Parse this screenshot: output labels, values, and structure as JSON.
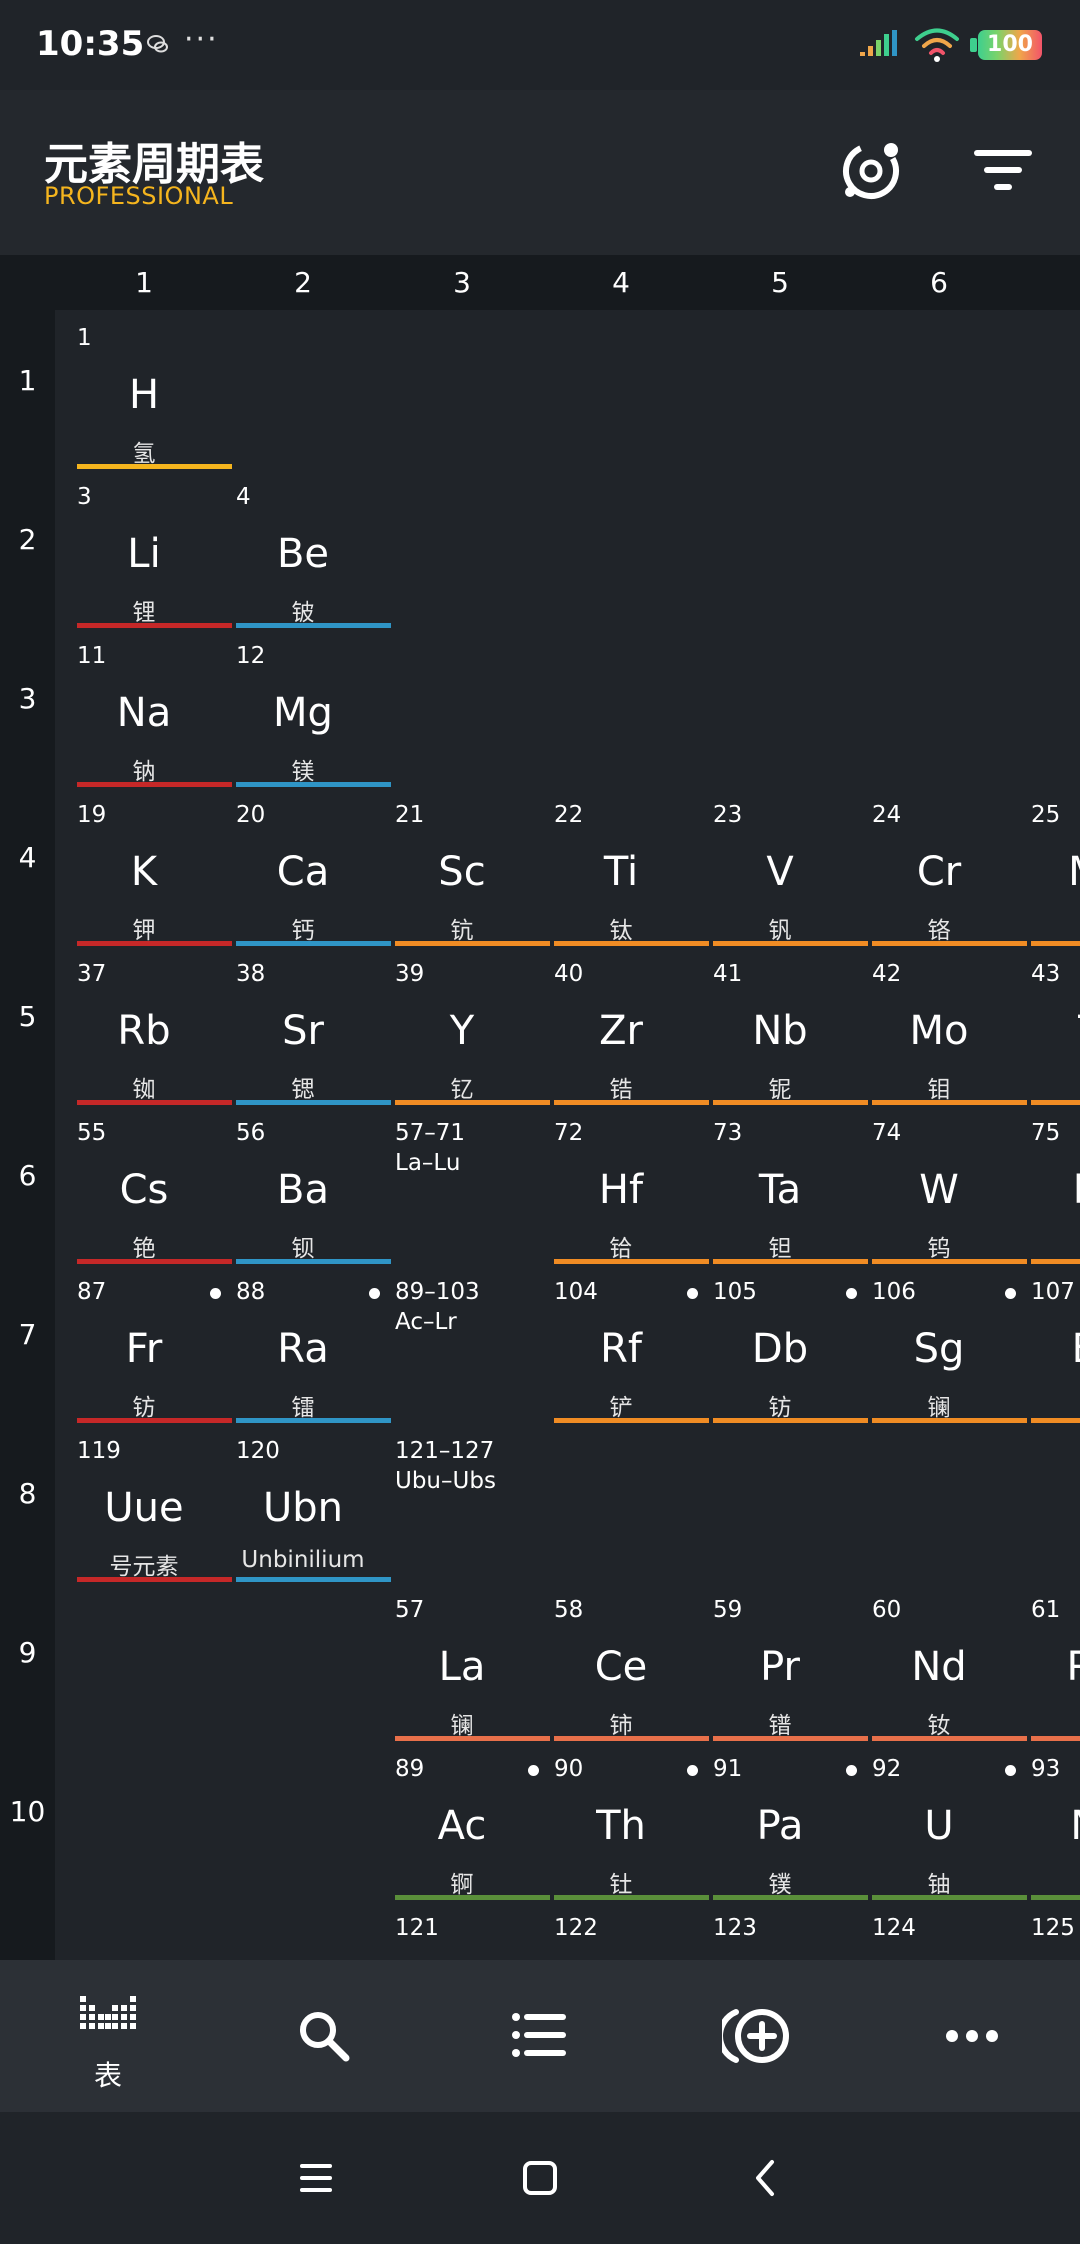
{
  "status_bar": {
    "time": "10:35",
    "more": "···",
    "battery": "100"
  },
  "header": {
    "title": "元素周期表",
    "subtitle": "PROFESSIONAL"
  },
  "groups": [
    "1",
    "2",
    "3",
    "4",
    "5",
    "6"
  ],
  "periods": [
    "1",
    "2",
    "3",
    "4",
    "5",
    "6",
    "7",
    "8",
    "9",
    "10"
  ],
  "colors": {
    "hydrogen": "#f5b51e",
    "alkali": "#c62828",
    "alkaline_earth": "#2f95c6",
    "transition": "#f08c24",
    "lanthanide": "#e8704a",
    "actinide": "#5a8f3a",
    "accent": "#f5b51e"
  },
  "elements": [
    {
      "col": 1,
      "row": 1,
      "num": "1",
      "sym": "H",
      "name": "氢",
      "cat": "hydrogen"
    },
    {
      "col": 1,
      "row": 2,
      "num": "3",
      "sym": "Li",
      "name": "锂",
      "cat": "alkali"
    },
    {
      "col": 2,
      "row": 2,
      "num": "4",
      "sym": "Be",
      "name": "铍",
      "cat": "alkaline_earth"
    },
    {
      "col": 1,
      "row": 3,
      "num": "11",
      "sym": "Na",
      "name": "钠",
      "cat": "alkali"
    },
    {
      "col": 2,
      "row": 3,
      "num": "12",
      "sym": "Mg",
      "name": "镁",
      "cat": "alkaline_earth"
    },
    {
      "col": 1,
      "row": 4,
      "num": "19",
      "sym": "K",
      "name": "钾",
      "cat": "alkali"
    },
    {
      "col": 2,
      "row": 4,
      "num": "20",
      "sym": "Ca",
      "name": "钙",
      "cat": "alkaline_earth"
    },
    {
      "col": 3,
      "row": 4,
      "num": "21",
      "sym": "Sc",
      "name": "钪",
      "cat": "transition"
    },
    {
      "col": 4,
      "row": 4,
      "num": "22",
      "sym": "Ti",
      "name": "钛",
      "cat": "transition"
    },
    {
      "col": 5,
      "row": 4,
      "num": "23",
      "sym": "V",
      "name": "钒",
      "cat": "transition"
    },
    {
      "col": 6,
      "row": 4,
      "num": "24",
      "sym": "Cr",
      "name": "铬",
      "cat": "transition"
    },
    {
      "col": 7,
      "row": 4,
      "num": "25",
      "sym": "Mn",
      "name": "",
      "cat": "transition"
    },
    {
      "col": 1,
      "row": 5,
      "num": "37",
      "sym": "Rb",
      "name": "铷",
      "cat": "alkali"
    },
    {
      "col": 2,
      "row": 5,
      "num": "38",
      "sym": "Sr",
      "name": "锶",
      "cat": "alkaline_earth"
    },
    {
      "col": 3,
      "row": 5,
      "num": "39",
      "sym": "Y",
      "name": "钇",
      "cat": "transition"
    },
    {
      "col": 4,
      "row": 5,
      "num": "40",
      "sym": "Zr",
      "name": "锆",
      "cat": "transition"
    },
    {
      "col": 5,
      "row": 5,
      "num": "41",
      "sym": "Nb",
      "name": "铌",
      "cat": "transition"
    },
    {
      "col": 6,
      "row": 5,
      "num": "42",
      "sym": "Mo",
      "name": "钼",
      "cat": "transition"
    },
    {
      "col": 7,
      "row": 5,
      "num": "43",
      "sym": "Tc",
      "name": "",
      "cat": "transition"
    },
    {
      "col": 1,
      "row": 6,
      "num": "55",
      "sym": "Cs",
      "name": "铯",
      "cat": "alkali"
    },
    {
      "col": 2,
      "row": 6,
      "num": "56",
      "sym": "Ba",
      "name": "钡",
      "cat": "alkaline_earth"
    },
    {
      "col": 4,
      "row": 6,
      "num": "72",
      "sym": "Hf",
      "name": "铪",
      "cat": "transition"
    },
    {
      "col": 5,
      "row": 6,
      "num": "73",
      "sym": "Ta",
      "name": "钽",
      "cat": "transition"
    },
    {
      "col": 6,
      "row": 6,
      "num": "74",
      "sym": "W",
      "name": "钨",
      "cat": "transition"
    },
    {
      "col": 7,
      "row": 6,
      "num": "75",
      "sym": "Re",
      "name": "",
      "cat": "transition"
    },
    {
      "col": 1,
      "row": 7,
      "num": "87",
      "sym": "Fr",
      "name": "钫",
      "cat": "alkali",
      "dot": true
    },
    {
      "col": 2,
      "row": 7,
      "num": "88",
      "sym": "Ra",
      "name": "镭",
      "cat": "alkaline_earth",
      "dot": true
    },
    {
      "col": 4,
      "row": 7,
      "num": "104",
      "sym": "Rf",
      "name": "铲",
      "cat": "transition",
      "dot": true
    },
    {
      "col": 5,
      "row": 7,
      "num": "105",
      "sym": "Db",
      "name": "钫",
      "cat": "transition",
      "dot": true
    },
    {
      "col": 6,
      "row": 7,
      "num": "106",
      "sym": "Sg",
      "name": "镧",
      "cat": "transition",
      "dot": true
    },
    {
      "col": 7,
      "row": 7,
      "num": "107",
      "sym": "Bh",
      "name": "",
      "cat": "transition"
    },
    {
      "col": 1,
      "row": 8,
      "num": "119",
      "sym": "Uue",
      "name": "号元素",
      "cat": "alkali"
    },
    {
      "col": 2,
      "row": 8,
      "num": "120",
      "sym": "Ubn",
      "name": "Unbinilium",
      "cat": "alkaline_earth"
    },
    {
      "col": 3,
      "row": 9,
      "num": "57",
      "sym": "La",
      "name": "镧",
      "cat": "lanthanide"
    },
    {
      "col": 4,
      "row": 9,
      "num": "58",
      "sym": "Ce",
      "name": "铈",
      "cat": "lanthanide"
    },
    {
      "col": 5,
      "row": 9,
      "num": "59",
      "sym": "Pr",
      "name": "镨",
      "cat": "lanthanide"
    },
    {
      "col": 6,
      "row": 9,
      "num": "60",
      "sym": "Nd",
      "name": "钕",
      "cat": "lanthanide"
    },
    {
      "col": 7,
      "row": 9,
      "num": "61",
      "sym": "Pm",
      "name": "",
      "cat": "lanthanide"
    },
    {
      "col": 3,
      "row": 10,
      "num": "89",
      "sym": "Ac",
      "name": "锕",
      "cat": "actinide",
      "dot": true
    },
    {
      "col": 4,
      "row": 10,
      "num": "90",
      "sym": "Th",
      "name": "钍",
      "cat": "actinide",
      "dot": true
    },
    {
      "col": 5,
      "row": 10,
      "num": "91",
      "sym": "Pa",
      "name": "镤",
      "cat": "actinide",
      "dot": true
    },
    {
      "col": 6,
      "row": 10,
      "num": "92",
      "sym": "U",
      "name": "铀",
      "cat": "actinide",
      "dot": true
    },
    {
      "col": 7,
      "row": 10,
      "num": "93",
      "sym": "Np",
      "name": "",
      "cat": "actinide"
    }
  ],
  "placeholders": [
    {
      "col": 3,
      "row": 6,
      "num": "57–71",
      "range": "La–Lu"
    },
    {
      "col": 3,
      "row": 7,
      "num": "89–103",
      "range": "Ac–Lr"
    },
    {
      "col": 3,
      "row": 8,
      "num": "121–127",
      "range": "Ubu–Ubs"
    }
  ],
  "row11_numbers": [
    {
      "col": 3,
      "num": "121"
    },
    {
      "col": 4,
      "num": "122"
    },
    {
      "col": 5,
      "num": "123"
    },
    {
      "col": 6,
      "num": "124"
    },
    {
      "col": 7,
      "num": "125"
    }
  ],
  "bottom_nav": {
    "items": [
      "table-icon",
      "search-icon",
      "list-icon",
      "add-circle-icon",
      "more-icon"
    ],
    "table_label": "表"
  }
}
